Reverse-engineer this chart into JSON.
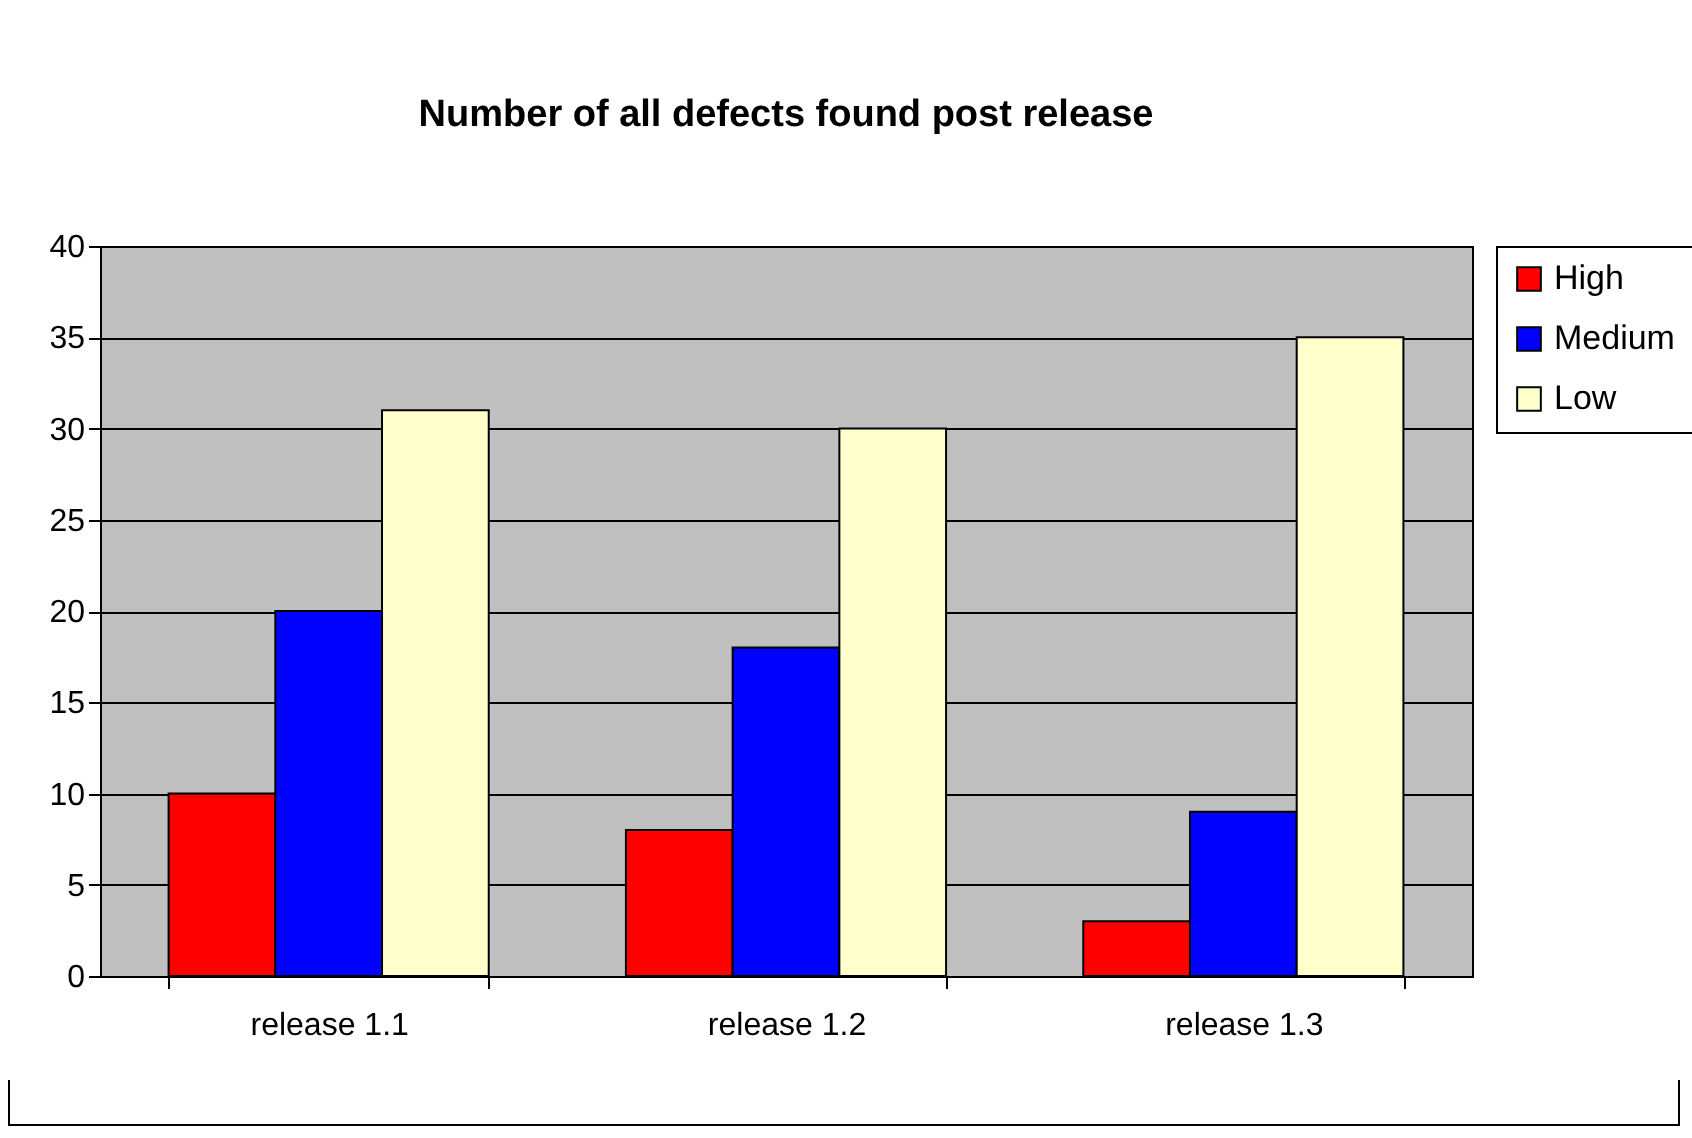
{
  "chart_data": {
    "type": "bar",
    "title": "Number of all defects found post release",
    "categories": [
      "release 1.1",
      "release 1.2",
      "release 1.3"
    ],
    "series": [
      {
        "name": "High",
        "color": "#ff0000",
        "values": [
          10,
          8,
          3
        ]
      },
      {
        "name": "Medium",
        "color": "#0000ff",
        "values": [
          20,
          18,
          9
        ]
      },
      {
        "name": "Low",
        "color": "#ffffcc",
        "values": [
          31,
          30,
          35
        ]
      }
    ],
    "ylim": [
      0,
      40
    ],
    "yticks": [
      0,
      5,
      10,
      15,
      20,
      25,
      30,
      35,
      40
    ],
    "grid": "y",
    "legend": "right"
  }
}
